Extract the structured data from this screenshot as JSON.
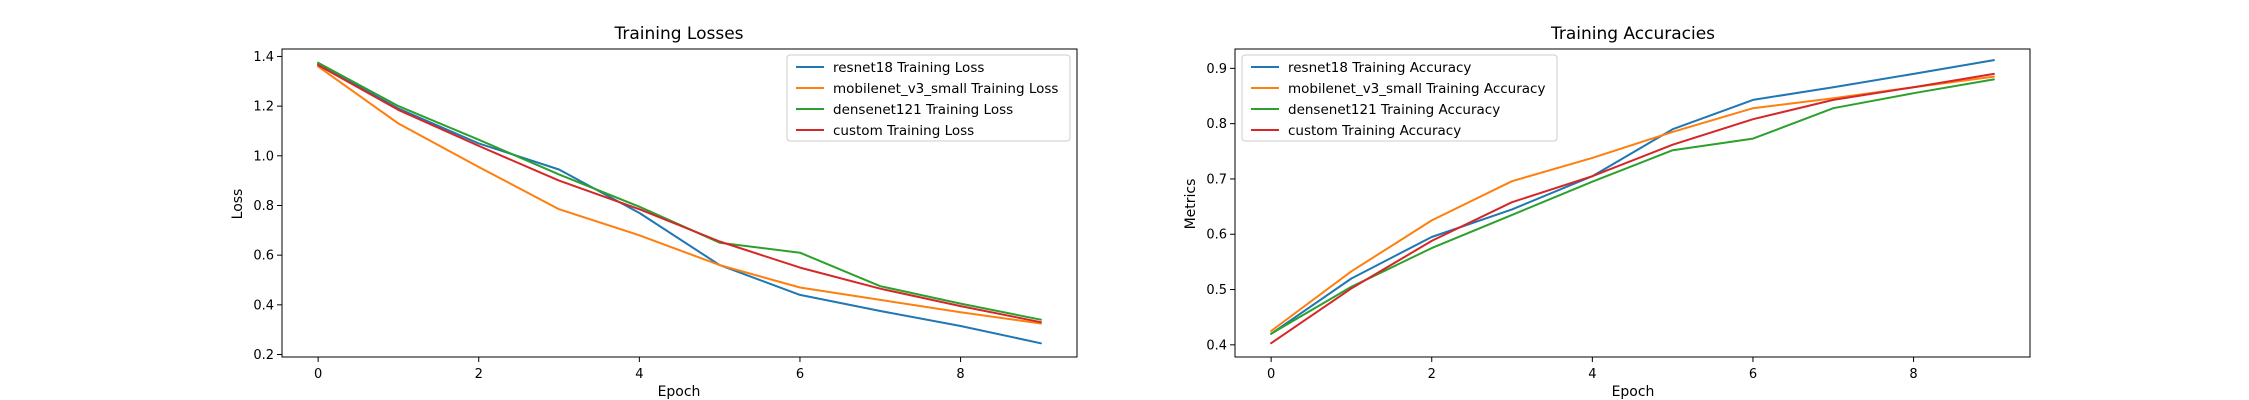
{
  "chart_data": [
    {
      "type": "line",
      "title": "Training Losses",
      "xlabel": "Epoch",
      "ylabel": "Loss",
      "xlim": [
        -0.45,
        9.45
      ],
      "ylim": [
        0.19,
        1.43
      ],
      "xticks": [
        0,
        2,
        4,
        6,
        8
      ],
      "yticks": [
        0.2,
        0.4,
        0.6,
        0.8,
        1.0,
        1.2,
        1.4
      ],
      "xtick_labels": [
        "0",
        "2",
        "4",
        "6",
        "8"
      ],
      "ytick_labels": [
        "0.2",
        "0.4",
        "0.6",
        "0.8",
        "1.0",
        "1.2",
        "1.4"
      ],
      "legend_position": "top-right",
      "x": [
        0,
        1,
        2,
        3,
        4,
        5,
        6,
        7,
        8,
        9
      ],
      "series": [
        {
          "name": "resnet18 Training Loss",
          "color": "#1f77b4",
          "values": [
            1.37,
            1.19,
            1.05,
            0.945,
            0.77,
            0.56,
            0.44,
            0.375,
            0.315,
            0.245
          ]
        },
        {
          "name": "mobilenet_v3_small Training Loss",
          "color": "#ff7f0e",
          "values": [
            1.36,
            1.13,
            0.955,
            0.785,
            0.68,
            0.56,
            0.47,
            0.42,
            0.37,
            0.325
          ]
        },
        {
          "name": "densenet121 Training Loss",
          "color": "#2ca02c",
          "values": [
            1.375,
            1.2,
            1.065,
            0.925,
            0.795,
            0.65,
            0.61,
            0.475,
            0.405,
            0.34
          ]
        },
        {
          "name": "custom Training Loss",
          "color": "#d62728",
          "values": [
            1.365,
            1.185,
            1.04,
            0.9,
            0.785,
            0.655,
            0.55,
            0.465,
            0.395,
            0.33
          ]
        }
      ]
    },
    {
      "type": "line",
      "title": "Training Accuracies",
      "xlabel": "Epoch",
      "ylabel": "Metrics",
      "xlim": [
        -0.45,
        9.45
      ],
      "ylim": [
        0.378,
        0.935
      ],
      "xticks": [
        0,
        2,
        4,
        6,
        8
      ],
      "yticks": [
        0.4,
        0.5,
        0.6,
        0.7,
        0.8,
        0.9
      ],
      "xtick_labels": [
        "0",
        "2",
        "4",
        "6",
        "8"
      ],
      "ytick_labels": [
        "0.4",
        "0.5",
        "0.6",
        "0.7",
        "0.8",
        "0.9"
      ],
      "legend_position": "top-left",
      "x": [
        0,
        1,
        2,
        3,
        4,
        5,
        6,
        7,
        8,
        9
      ],
      "series": [
        {
          "name": "resnet18 Training Accuracy",
          "color": "#1f77b4",
          "values": [
            0.42,
            0.52,
            0.595,
            0.645,
            0.705,
            0.79,
            0.843,
            0.866,
            0.89,
            0.915
          ]
        },
        {
          "name": "mobilenet_v3_small Training Accuracy",
          "color": "#ff7f0e",
          "values": [
            0.425,
            0.533,
            0.625,
            0.696,
            0.738,
            0.785,
            0.828,
            0.846,
            0.866,
            0.885
          ]
        },
        {
          "name": "densenet121 Training Accuracy",
          "color": "#2ca02c",
          "values": [
            0.42,
            0.505,
            0.575,
            0.635,
            0.695,
            0.752,
            0.773,
            0.828,
            0.855,
            0.88
          ]
        },
        {
          "name": "custom Training Accuracy",
          "color": "#d62728",
          "values": [
            0.403,
            0.502,
            0.588,
            0.658,
            0.705,
            0.762,
            0.808,
            0.843,
            0.866,
            0.89
          ]
        }
      ]
    }
  ]
}
